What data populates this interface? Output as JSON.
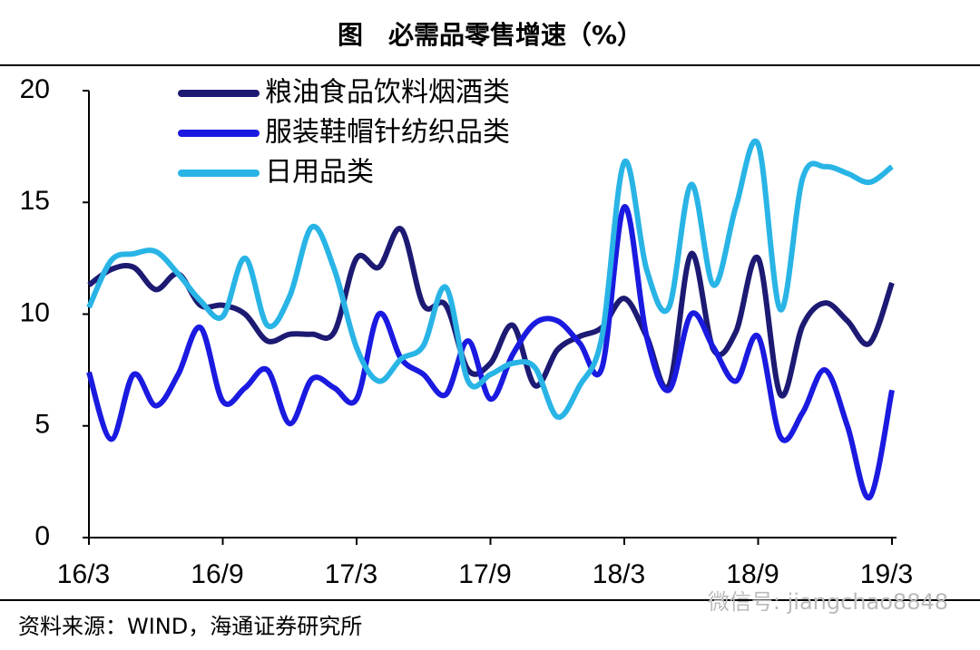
{
  "chart_data": {
    "type": "line",
    "title": "图　必需品零售增速（%）",
    "source": "资料来源：WIND，海通证券研究所",
    "watermark": "微信号: jiangchao8848",
    "categories": [
      "16/3",
      null,
      null,
      null,
      null,
      null,
      "16/9",
      null,
      null,
      null,
      null,
      null,
      "17/3",
      null,
      null,
      null,
      null,
      null,
      "17/9",
      null,
      null,
      null,
      null,
      null,
      "18/3",
      null,
      null,
      null,
      null,
      null,
      "18/9",
      null,
      null,
      null,
      null,
      null,
      "19/3"
    ],
    "series": [
      {
        "name": "粮油食品饮料烟酒类",
        "color": "#1c1a72",
        "values": [
          11.3,
          12.0,
          12.1,
          11.1,
          11.8,
          10.4,
          10.4,
          10.0,
          8.8,
          9.1,
          9.1,
          9.2,
          12.5,
          12.1,
          13.8,
          10.4,
          10.4,
          7.5,
          7.8,
          9.5,
          6.8,
          8.4,
          9.0,
          9.4,
          10.7,
          9.0,
          6.8,
          12.7,
          8.4,
          9.2,
          12.5,
          6.4,
          9.5,
          10.5,
          9.7,
          8.7,
          11.4
        ]
      },
      {
        "name": "服装鞋帽针纺织品类",
        "color": "#1a1ae0",
        "values": [
          7.4,
          4.4,
          7.3,
          5.9,
          7.3,
          9.4,
          6.1,
          6.7,
          7.5,
          5.1,
          7.1,
          6.7,
          6.2,
          10.0,
          8.0,
          7.3,
          6.4,
          8.8,
          6.2,
          8.2,
          9.6,
          9.7,
          8.7,
          7.6,
          14.8,
          9.0,
          6.6,
          10.0,
          8.5,
          7.0,
          9.0,
          4.5,
          5.6,
          7.5,
          5.0,
          1.8,
          6.6
        ]
      },
      {
        "name": "日用品类",
        "color": "#29b4e6",
        "values": [
          10.3,
          12.4,
          12.7,
          12.8,
          11.8,
          10.6,
          9.9,
          12.5,
          9.5,
          10.8,
          13.9,
          12.0,
          8.5,
          7.0,
          8.0,
          8.6,
          11.2,
          7.0,
          7.3,
          7.8,
          7.6,
          5.4,
          6.8,
          9.0,
          16.8,
          12.0,
          10.3,
          15.8,
          11.3,
          14.8,
          17.6,
          10.2,
          16.1,
          16.6,
          16.3,
          15.9,
          16.6
        ]
      }
    ],
    "ylim": [
      0,
      20
    ],
    "yticks": [
      0,
      5,
      10,
      15,
      20
    ],
    "legend": "upper-left"
  }
}
